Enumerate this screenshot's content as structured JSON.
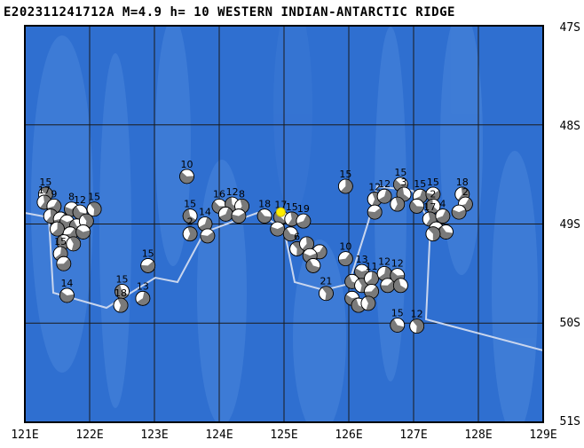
{
  "title": "E202311241712A M=4.9 h= 10 WESTERN INDIAN-ANTARCTIC RIDGE",
  "colors": {
    "ocean": "#2f6fd0",
    "ocean_light": "#4a86db",
    "grid": "#1a1a1a",
    "plate_boundary": "#c9d6ee",
    "epicenter": "#ffee00",
    "frame": "#000000"
  },
  "axes": {
    "lat_labels": [
      "47S",
      "48S",
      "49S",
      "50S",
      "51S"
    ],
    "lon_labels": [
      "121E",
      "122E",
      "123E",
      "124E",
      "125E",
      "126E",
      "127E",
      "128E",
      "129E"
    ]
  },
  "events": [
    {
      "lon": 121.32,
      "lat": -48.7,
      "label": "15"
    },
    {
      "lon": 121.3,
      "lat": -48.78,
      "label": "17"
    },
    {
      "lon": 121.45,
      "lat": -48.82,
      "label": "9"
    },
    {
      "lon": 121.72,
      "lat": -48.85,
      "label": "8"
    },
    {
      "lon": 121.85,
      "lat": -48.88,
      "label": "12"
    },
    {
      "lon": 122.07,
      "lat": -48.85,
      "label": "15"
    },
    {
      "lon": 121.4,
      "lat": -48.92,
      "label": ""
    },
    {
      "lon": 121.55,
      "lat": -48.95,
      "label": ""
    },
    {
      "lon": 121.65,
      "lat": -48.98,
      "label": ""
    },
    {
      "lon": 121.8,
      "lat": -49.02,
      "label": ""
    },
    {
      "lon": 121.95,
      "lat": -48.97,
      "label": ""
    },
    {
      "lon": 121.5,
      "lat": -49.05,
      "label": ""
    },
    {
      "lon": 121.7,
      "lat": -49.1,
      "label": ""
    },
    {
      "lon": 121.9,
      "lat": -49.08,
      "label": ""
    },
    {
      "lon": 121.6,
      "lat": -49.18,
      "label": ""
    },
    {
      "lon": 121.75,
      "lat": -49.2,
      "label": ""
    },
    {
      "lon": 121.55,
      "lat": -49.3,
      "label": "15"
    },
    {
      "lon": 121.6,
      "lat": -49.4,
      "label": ""
    },
    {
      "lon": 121.65,
      "lat": -49.72,
      "label": "14"
    },
    {
      "lon": 122.5,
      "lat": -49.68,
      "label": "15"
    },
    {
      "lon": 122.48,
      "lat": -49.82,
      "label": "18"
    },
    {
      "lon": 122.82,
      "lat": -49.75,
      "label": "13"
    },
    {
      "lon": 122.9,
      "lat": -49.42,
      "label": "15"
    },
    {
      "lon": 123.5,
      "lat": -48.52,
      "label": "10"
    },
    {
      "lon": 123.55,
      "lat": -48.92,
      "label": "15"
    },
    {
      "lon": 123.55,
      "lat": -49.1,
      "label": "2"
    },
    {
      "lon": 123.78,
      "lat": -49.0,
      "label": "14"
    },
    {
      "lon": 123.82,
      "lat": -49.12,
      "label": ""
    },
    {
      "lon": 124.0,
      "lat": -48.82,
      "label": "16"
    },
    {
      "lon": 124.2,
      "lat": -48.8,
      "label": "12"
    },
    {
      "lon": 124.35,
      "lat": -48.82,
      "label": "8"
    },
    {
      "lon": 124.1,
      "lat": -48.9,
      "label": ""
    },
    {
      "lon": 124.3,
      "lat": -48.92,
      "label": ""
    },
    {
      "lon": 124.7,
      "lat": -48.92,
      "label": "18"
    },
    {
      "lon": 124.95,
      "lat": -48.93,
      "label": "17"
    },
    {
      "lon": 125.12,
      "lat": -48.95,
      "label": "15"
    },
    {
      "lon": 125.3,
      "lat": -48.97,
      "label": "19"
    },
    {
      "lon": 124.9,
      "lat": -49.05,
      "label": ""
    },
    {
      "lon": 125.1,
      "lat": -49.1,
      "label": ""
    },
    {
      "lon": 125.2,
      "lat": -49.25,
      "label": "6"
    },
    {
      "lon": 125.35,
      "lat": -49.2,
      "label": ""
    },
    {
      "lon": 125.55,
      "lat": -49.28,
      "label": ""
    },
    {
      "lon": 125.4,
      "lat": -49.32,
      "label": ""
    },
    {
      "lon": 125.45,
      "lat": -49.42,
      "label": ""
    },
    {
      "lon": 125.65,
      "lat": -49.7,
      "label": "21"
    },
    {
      "lon": 125.95,
      "lat": -48.62,
      "label": "15"
    },
    {
      "lon": 125.95,
      "lat": -49.35,
      "label": "10"
    },
    {
      "lon": 126.2,
      "lat": -49.48,
      "label": "13"
    },
    {
      "lon": 126.05,
      "lat": -49.58,
      "label": ""
    },
    {
      "lon": 126.2,
      "lat": -49.62,
      "label": ""
    },
    {
      "lon": 126.35,
      "lat": -49.55,
      "label": "11"
    },
    {
      "lon": 126.35,
      "lat": -49.68,
      "label": ""
    },
    {
      "lon": 126.05,
      "lat": -49.75,
      "label": ""
    },
    {
      "lon": 126.15,
      "lat": -49.82,
      "label": ""
    },
    {
      "lon": 126.3,
      "lat": -49.8,
      "label": ""
    },
    {
      "lon": 126.55,
      "lat": -49.5,
      "label": "12"
    },
    {
      "lon": 126.6,
      "lat": -49.62,
      "label": ""
    },
    {
      "lon": 126.75,
      "lat": -49.52,
      "label": "12"
    },
    {
      "lon": 126.8,
      "lat": -49.62,
      "label": ""
    },
    {
      "lon": 126.4,
      "lat": -48.75,
      "label": "12"
    },
    {
      "lon": 126.55,
      "lat": -48.72,
      "label": "12"
    },
    {
      "lon": 126.4,
      "lat": -48.88,
      "label": ""
    },
    {
      "lon": 126.8,
      "lat": -48.6,
      "label": "15"
    },
    {
      "lon": 126.85,
      "lat": -48.7,
      "label": "3"
    },
    {
      "lon": 126.75,
      "lat": -48.8,
      "label": ""
    },
    {
      "lon": 127.1,
      "lat": -48.72,
      "label": "15"
    },
    {
      "lon": 127.3,
      "lat": -48.7,
      "label": "15"
    },
    {
      "lon": 127.05,
      "lat": -48.82,
      "label": ""
    },
    {
      "lon": 127.3,
      "lat": -48.82,
      "label": "2"
    },
    {
      "lon": 127.25,
      "lat": -48.95,
      "label": "17"
    },
    {
      "lon": 127.45,
      "lat": -48.92,
      "label": "4"
    },
    {
      "lon": 127.35,
      "lat": -49.05,
      "label": ""
    },
    {
      "lon": 127.5,
      "lat": -49.08,
      "label": ""
    },
    {
      "lon": 127.3,
      "lat": -49.1,
      "label": ""
    },
    {
      "lon": 127.75,
      "lat": -48.7,
      "label": "18"
    },
    {
      "lon": 127.8,
      "lat": -48.8,
      "label": "2"
    },
    {
      "lon": 127.7,
      "lat": -48.88,
      "label": ""
    },
    {
      "lon": 126.75,
      "lat": -50.02,
      "label": "15"
    },
    {
      "lon": 127.05,
      "lat": -50.03,
      "label": "12"
    }
  ],
  "epicenter": {
    "lon": 124.95,
    "lat": -48.88
  }
}
